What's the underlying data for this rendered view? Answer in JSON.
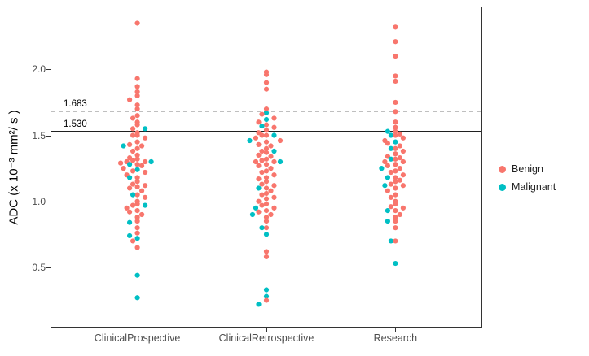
{
  "chart_data": {
    "type": "scatter",
    "variant": "beeswarm-jitter",
    "title": "",
    "xlabel": "",
    "ylabel": "ADC (x 10⁻³ mm²/ s )",
    "categories": [
      "ClinicalProspective",
      "ClinicalRetrospective",
      "Research"
    ],
    "yticks": [
      0.5,
      1.0,
      1.5,
      2.0
    ],
    "ytick_labels": [
      "0.5",
      "1.0",
      "1.5",
      "2.0"
    ],
    "ylim": [
      0.05,
      2.47
    ],
    "grid": "off",
    "legend": {
      "position": "right"
    },
    "reference_lines": [
      {
        "value": 1.683,
        "label": "1.683",
        "style": "dashed",
        "color": "#000000"
      },
      {
        "value": 1.53,
        "label": "1.530",
        "style": "solid",
        "color": "#000000"
      }
    ],
    "series": [
      {
        "name": "Benign",
        "color": "#F8766D",
        "points": {
          "ClinicalProspective": [
            2.35,
            1.93,
            1.87,
            1.83,
            1.8,
            1.77,
            1.73,
            1.7,
            1.65,
            1.63,
            1.6,
            1.58,
            1.55,
            1.52,
            1.5,
            1.5,
            1.48,
            1.45,
            1.43,
            1.42,
            1.4,
            1.38,
            1.35,
            1.33,
            1.32,
            1.31,
            1.3,
            1.3,
            1.29,
            1.28,
            1.27,
            1.25,
            1.23,
            1.22,
            1.2,
            1.18,
            1.15,
            1.13,
            1.12,
            1.11,
            1.1,
            1.08,
            1.05,
            1.03,
            1.0,
            0.98,
            0.97,
            0.95,
            0.93,
            0.92,
            0.9,
            0.88,
            0.85,
            0.8,
            0.76,
            0.7,
            0.65
          ],
          "ClinicalRetrospective": [
            1.98,
            1.96,
            1.9,
            1.85,
            1.7,
            1.66,
            1.63,
            1.6,
            1.58,
            1.56,
            1.54,
            1.52,
            1.5,
            1.5,
            1.48,
            1.46,
            1.45,
            1.43,
            1.42,
            1.4,
            1.38,
            1.37,
            1.35,
            1.34,
            1.32,
            1.31,
            1.3,
            1.3,
            1.28,
            1.27,
            1.25,
            1.23,
            1.22,
            1.2,
            1.18,
            1.17,
            1.15,
            1.13,
            1.12,
            1.1,
            1.08,
            1.06,
            1.05,
            1.03,
            1.02,
            1.0,
            0.98,
            0.97,
            0.95,
            0.93,
            0.92,
            0.9,
            0.88,
            0.85,
            0.8,
            0.62,
            0.58,
            0.25
          ],
          "Research": [
            2.32,
            2.21,
            2.1,
            1.95,
            1.91,
            1.75,
            1.68,
            1.6,
            1.56,
            1.53,
            1.51,
            1.5,
            1.48,
            1.46,
            1.44,
            1.42,
            1.4,
            1.38,
            1.36,
            1.34,
            1.33,
            1.32,
            1.3,
            1.3,
            1.28,
            1.27,
            1.25,
            1.23,
            1.22,
            1.2,
            1.18,
            1.16,
            1.15,
            1.13,
            1.12,
            1.1,
            1.08,
            1.05,
            1.03,
            1.0,
            0.98,
            0.96,
            0.95,
            0.93,
            0.9,
            0.88,
            0.85,
            0.8,
            0.7
          ]
        }
      },
      {
        "name": "Malignant",
        "color": "#00BFC4",
        "points": {
          "ClinicalProspective": [
            1.55,
            1.42,
            1.3,
            1.28,
            1.24,
            1.18,
            1.05,
            0.97,
            0.84,
            0.74,
            0.72,
            0.44,
            0.27
          ],
          "ClinicalRetrospective": [
            1.67,
            1.62,
            1.57,
            1.5,
            1.46,
            1.38,
            1.3,
            1.1,
            0.95,
            0.9,
            0.8,
            0.75,
            0.33,
            0.28,
            0.22
          ],
          "Research": [
            1.53,
            1.5,
            1.45,
            1.4,
            1.32,
            1.25,
            1.18,
            1.12,
            0.93,
            0.85,
            0.7,
            0.53
          ]
        }
      }
    ]
  }
}
